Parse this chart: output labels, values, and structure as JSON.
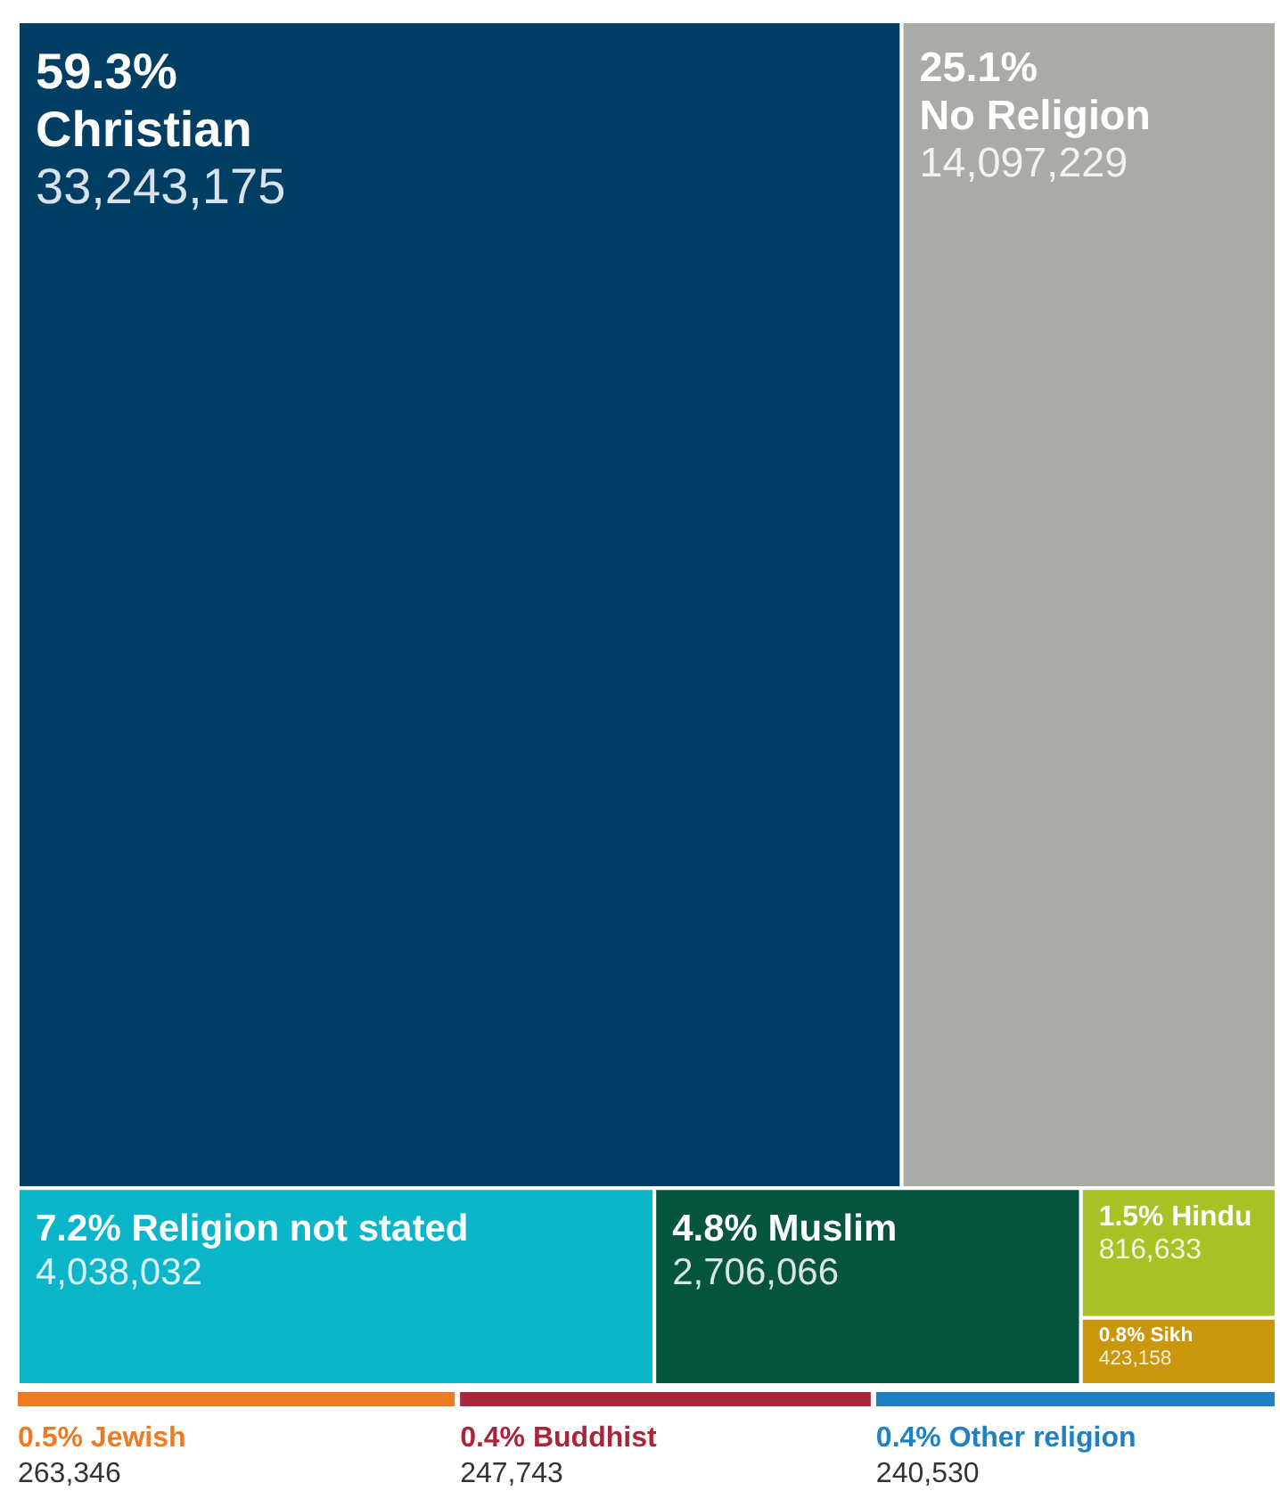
{
  "chart_data": {
    "type": "other",
    "categories": [
      "59.3% Christian",
      "25.1% No Religion",
      "7.2% Religion not stated",
      "4.8% Muslim",
      "1.5% Hindu",
      "0.8% Sikh",
      "0.5% Jewish",
      "0.4% Buddhist",
      "0.4% Other religion"
    ],
    "values": [
      33243175,
      14097229,
      4038032,
      2706066,
      816633,
      423158,
      263346,
      247743,
      240530
    ],
    "value_labels": [
      "33,243,175",
      "14,097,229",
      "4,038,032",
      "2,706,066",
      "816,633",
      "423,158",
      "263,346",
      "247,743",
      "240,530"
    ],
    "colors": [
      "#003f63",
      "#a8aca4",
      "#0bb5c9",
      "#05543f",
      "#a9c125",
      "#c9960c",
      "#f07a22",
      "#a8253c",
      "#2080c4"
    ]
  }
}
